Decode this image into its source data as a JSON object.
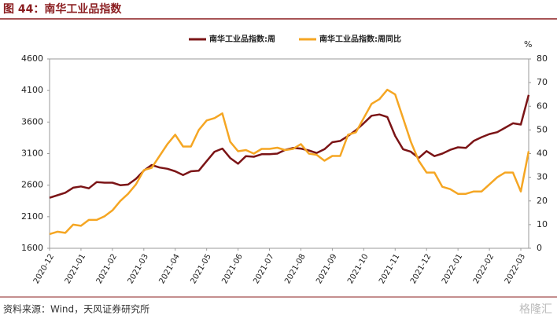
{
  "header": {
    "title": "图 44：南华工业品指数"
  },
  "footer": {
    "source": "资料来源：Wind，天风证券研究所",
    "watermark": "格隆汇"
  },
  "chart_data": {
    "type": "line",
    "y2_label": "%",
    "categories": [
      "2020-12",
      null,
      null,
      null,
      "2021-01",
      null,
      null,
      null,
      "2021-02",
      null,
      null,
      null,
      "2021-03",
      null,
      null,
      null,
      "2021-04",
      null,
      null,
      null,
      "2021-05",
      null,
      null,
      null,
      "2021-06",
      null,
      null,
      null,
      "2021-07",
      null,
      null,
      null,
      "2021-08",
      null,
      null,
      null,
      "2021-09",
      null,
      null,
      null,
      "2021-10",
      null,
      null,
      null,
      "2021-11",
      null,
      null,
      null,
      "2021-12",
      null,
      null,
      null,
      "2022-01",
      null,
      null,
      null,
      "2022-02",
      null,
      null,
      null,
      "2022-03",
      null
    ],
    "series": [
      {
        "name": "南华工业品指数:周",
        "color": "#7b1416",
        "values": [
          2400,
          2440,
          2480,
          2560,
          2580,
          2550,
          2650,
          2640,
          2640,
          2600,
          2610,
          2700,
          2830,
          2920,
          2880,
          2860,
          2820,
          2760,
          2820,
          2830,
          2980,
          3130,
          3180,
          3030,
          2940,
          3060,
          3050,
          3090,
          3090,
          3100,
          3160,
          3190,
          3180,
          3150,
          3110,
          3170,
          3280,
          3300,
          3380,
          3470,
          3580,
          3700,
          3720,
          3680,
          3380,
          3170,
          3130,
          3030,
          3140,
          3060,
          3100,
          3160,
          3200,
          3190,
          3300,
          3360,
          3410,
          3440,
          3510,
          3580,
          3560,
          4030
        ]
      },
      {
        "name": "南华工业品指数:周同比",
        "color": "#f5a623",
        "axis": "y2",
        "values": [
          6,
          7,
          6.5,
          10,
          9.5,
          12,
          12,
          13.5,
          16,
          20,
          23,
          27,
          33,
          34,
          39,
          44,
          48,
          43,
          43,
          50,
          54,
          55,
          57,
          45,
          41,
          41.5,
          40,
          42,
          42,
          42.5,
          41.5,
          42,
          44,
          40,
          39.5,
          37,
          39,
          39,
          48,
          49,
          55,
          61,
          63,
          67,
          65,
          55,
          45,
          37,
          32,
          32,
          26,
          25,
          23,
          23,
          24,
          24,
          27,
          30,
          32,
          32,
          24,
          41
        ]
      }
    ],
    "ylim": [
      1600,
      4600
    ],
    "yticks": [
      1600,
      2100,
      2600,
      3100,
      3600,
      4100,
      4600
    ],
    "y2lim": [
      0,
      80
    ],
    "y2ticks": [
      0,
      10,
      20,
      30,
      40,
      50,
      60,
      70,
      80
    ],
    "legend": "top"
  }
}
